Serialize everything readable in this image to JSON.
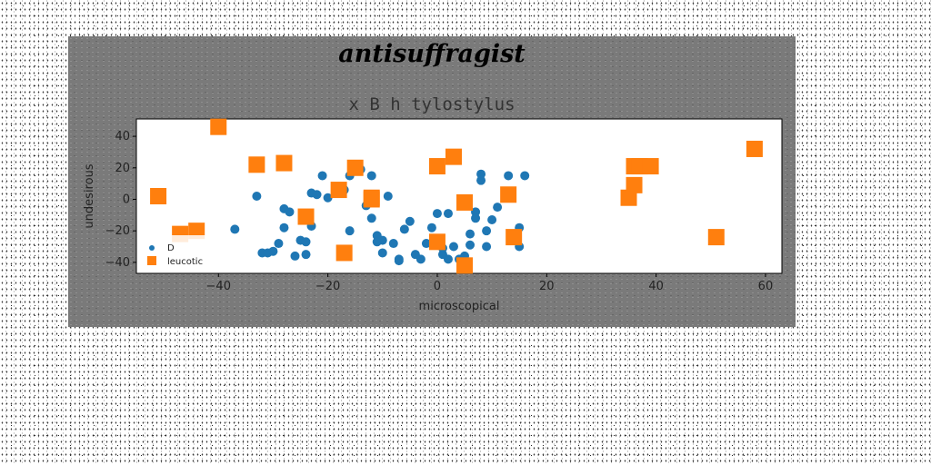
{
  "chart_data": {
    "type": "scatter",
    "suptitle": "antisuffragist",
    "title": "x B h tylostylus",
    "xlabel": "microscopical",
    "ylabel": "undesirous",
    "xlim": [
      -55,
      63
    ],
    "ylim": [
      -47,
      51
    ],
    "xticks": [
      -40,
      -20,
      0,
      20,
      40,
      60
    ],
    "yticks": [
      -40,
      -20,
      0,
      20,
      40
    ],
    "grid": false,
    "legend": "lower-left",
    "series": [
      {
        "name": "D",
        "marker": "circle",
        "color": "#1f77b4",
        "x": [
          -37,
          -33,
          -32,
          -31,
          -30,
          -29,
          -28,
          -28,
          -27,
          -26,
          -25,
          -24,
          -24,
          -23,
          -23,
          -22,
          -21,
          -20,
          -17,
          -17,
          -16,
          -16,
          -14,
          -13,
          -12,
          -12,
          -11,
          -11,
          -10,
          -10,
          -9,
          -8,
          -7,
          -7,
          -6,
          -5,
          -4,
          -3,
          -2,
          -1,
          0,
          1,
          1,
          2,
          2,
          3,
          4,
          5,
          6,
          6,
          7,
          7,
          8,
          8,
          9,
          9,
          10,
          11,
          13,
          14,
          15,
          15,
          16
        ],
        "y": [
          -19,
          2,
          -34,
          -34,
          -33,
          -28,
          -6,
          -18,
          -8,
          -36,
          -26,
          -35,
          -27,
          -17,
          4,
          3,
          15,
          1,
          -35,
          6,
          -20,
          15,
          19,
          -4,
          -12,
          15,
          -23,
          -27,
          -34,
          -26,
          2,
          -28,
          -39,
          -38,
          -19,
          -14,
          -35,
          -38,
          -28,
          -18,
          -9,
          -35,
          -31,
          -38,
          -9,
          -30,
          -38,
          -36,
          -29,
          -22,
          -8,
          -12,
          16,
          12,
          -30,
          -20,
          -13,
          -5,
          15,
          -25,
          -18,
          -30,
          15
        ]
      },
      {
        "name": "leucotic",
        "marker": "square",
        "color": "#ff7f0e",
        "x": [
          -51,
          -47,
          -44,
          -40,
          -33,
          -28,
          -24,
          -18,
          -17,
          -15,
          -12,
          -12,
          0,
          0,
          3,
          5,
          5,
          13,
          14,
          35,
          36,
          36,
          37,
          39,
          51,
          58
        ],
        "y": [
          2,
          -22,
          -20,
          46,
          22,
          23,
          -11,
          6,
          -34,
          20,
          0,
          1,
          -27,
          21,
          27,
          -42,
          -2,
          3,
          -24,
          1,
          9,
          21,
          21,
          21,
          -24,
          32
        ]
      }
    ]
  }
}
